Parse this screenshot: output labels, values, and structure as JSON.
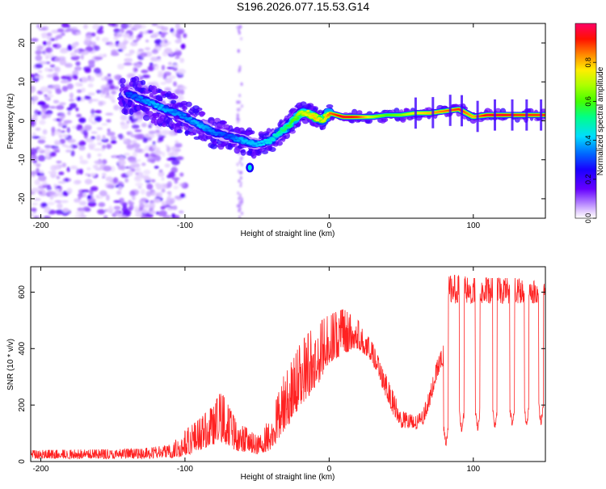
{
  "title": "S196.2026.077.15.53.G14",
  "chart_data": [
    {
      "type": "heatmap",
      "name": "spectrogram",
      "xlabel": "Height of straight line (km)",
      "ylabel": "Frequency (Hz)",
      "xlim": [
        -207,
        150
      ],
      "ylim": [
        -25,
        25
      ],
      "x_ticks": [
        -200,
        -100,
        0,
        100
      ],
      "y_ticks": [
        -20,
        -10,
        0,
        10,
        20
      ],
      "colorbar": {
        "label": "Normalized spectral amplitude",
        "range": [
          0.0,
          1.0
        ],
        "ticks": [
          0.0,
          0.2,
          0.4,
          0.6,
          0.8
        ],
        "tick_labels": [
          "0.0",
          "0.2",
          "0.4",
          "0.6",
          "0.8"
        ],
        "colormap": [
          "#ffffff",
          "#f2e6ff",
          "#c9a3ff",
          "#9b4dff",
          "#6600ff",
          "#2b00ff",
          "#0044ff",
          "#00ccff",
          "#00ff88",
          "#66ff00",
          "#ffee00",
          "#ff8800",
          "#ff0000",
          "#ff0077"
        ]
      },
      "ridge": {
        "description": "dominant frequency trace vs height",
        "x": [
          -140,
          -120,
          -100,
          -90,
          -80,
          -70,
          -60,
          -50,
          -40,
          -35,
          -30,
          -25,
          -20,
          -15,
          -10,
          -5,
          0,
          10,
          20,
          30,
          40,
          50,
          60,
          70,
          80,
          90,
          100,
          110,
          120,
          130,
          140,
          150
        ],
        "y": [
          7,
          4,
          1,
          -1,
          -3,
          -4,
          -5,
          -6,
          -5,
          -3,
          -2,
          0,
          2,
          2,
          1,
          0,
          2,
          1,
          1,
          1,
          1.5,
          1.5,
          2,
          2,
          2.5,
          3,
          1,
          1.5,
          1.5,
          1.5,
          1.5,
          1.5
        ],
        "peak_amplitude": [
          0.3,
          0.4,
          0.35,
          0.4,
          0.35,
          0.3,
          0.4,
          0.4,
          0.45,
          0.5,
          0.55,
          0.6,
          0.7,
          0.75,
          0.8,
          0.7,
          0.85,
          0.95,
          0.9,
          0.7,
          0.6,
          0.65,
          0.75,
          0.8,
          0.85,
          0.9,
          0.8,
          0.95,
          0.95,
          0.9,
          0.9,
          0.9
        ]
      },
      "isolated_blob": {
        "x": -55,
        "y": -12
      },
      "noise_region_x": [
        -207,
        -115
      ]
    },
    {
      "type": "line",
      "name": "snr",
      "xlabel": "Height of straight line (km)",
      "ylabel": "SNR (10 * v/v)",
      "xlim": [
        -207,
        150
      ],
      "ylim": [
        0,
        690
      ],
      "x_ticks": [
        -200,
        -100,
        0,
        100
      ],
      "y_ticks": [
        0,
        200,
        400,
        600
      ],
      "color": "#ff2222",
      "envelope": {
        "x": [
          -207,
          -130,
          -110,
          -100,
          -90,
          -80,
          -75,
          -65,
          -50,
          -40,
          -30,
          -25,
          -20,
          -10,
          0,
          10,
          20,
          30,
          40,
          45,
          50,
          60,
          65,
          70,
          75,
          80,
          81,
          85,
          90,
          100,
          110,
          120,
          130,
          140,
          150
        ],
        "low": [
          10,
          10,
          12,
          20,
          40,
          60,
          70,
          40,
          25,
          40,
          120,
          150,
          200,
          250,
          350,
          380,
          400,
          350,
          220,
          160,
          120,
          110,
          130,
          200,
          300,
          350,
          600,
          560,
          560,
          560,
          560,
          560,
          560,
          560,
          560
        ],
        "high": [
          40,
          45,
          60,
          110,
          150,
          200,
          250,
          150,
          90,
          160,
          330,
          360,
          420,
          480,
          520,
          540,
          500,
          420,
          300,
          240,
          180,
          160,
          180,
          260,
          360,
          420,
          650,
          660,
          660,
          650,
          650,
          650,
          650,
          640,
          640
        ]
      },
      "dropouts": {
        "x": [
          81,
          92,
          103,
          115,
          127,
          137,
          147
        ],
        "min_value": [
          40,
          90,
          100,
          105,
          110,
          110,
          120
        ]
      }
    }
  ]
}
